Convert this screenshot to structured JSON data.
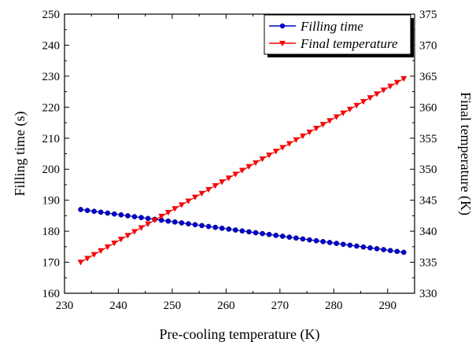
{
  "chart_data": {
    "type": "line",
    "title": "",
    "xlabel": "Pre-cooling temperature (K)",
    "ylabel": "Filling time (s)",
    "y2label": "Final temperature (K)",
    "xlim": [
      230,
      295
    ],
    "ylim": [
      160,
      250
    ],
    "y2lim": [
      330,
      375
    ],
    "grid": false,
    "legend_position": "top-right",
    "x_ticks": [
      "230",
      "240",
      "250",
      "260",
      "270",
      "280",
      "290"
    ],
    "y_ticks": [
      "160",
      "170",
      "180",
      "190",
      "200",
      "210",
      "220",
      "230",
      "240",
      "250"
    ],
    "y2_ticks": [
      "330",
      "335",
      "340",
      "345",
      "350",
      "355",
      "360",
      "365",
      "370",
      "375"
    ],
    "x": [
      233,
      293
    ],
    "n_points": 49,
    "series": [
      {
        "name": "Filling time",
        "axis": "left",
        "color": "#0000cc",
        "marker": "circle",
        "y_start": 187,
        "y_end": 173.2
      },
      {
        "name": "Final temperature",
        "axis": "right",
        "color": "#ff0000",
        "marker": "triangle-down",
        "y_start": 335,
        "y_end": 364.6
      }
    ]
  }
}
